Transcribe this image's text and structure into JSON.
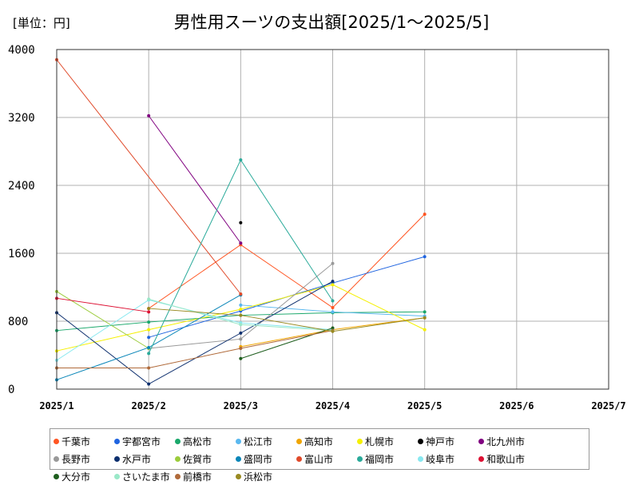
{
  "chart_data": {
    "type": "line",
    "title": "男性用スーツの支出額[2025/1～2025/5]",
    "unit_label": "[単位：円]",
    "xlabel": "",
    "ylabel": "",
    "x_ticks": [
      "2025/1",
      "2025/2",
      "2025/3",
      "2025/4",
      "2025/5",
      "2025/6",
      "2025/7"
    ],
    "y_ticks": [
      0,
      800,
      1600,
      2400,
      3200,
      4000
    ],
    "ylim": [
      0,
      4000
    ],
    "xlim": [
      "2025/1",
      "2025/7"
    ],
    "grid": true,
    "legend_position": "bottom",
    "series": [
      {
        "name": "千葉市",
        "color": "#ff5522",
        "points": [
          [
            "2025/2",
            950
          ],
          [
            "2025/3",
            1700
          ],
          [
            "2025/4",
            960
          ],
          [
            "2025/5",
            2060
          ]
        ]
      },
      {
        "name": "宇都宮市",
        "color": "#1f64e0",
        "points": [
          [
            "2025/2",
            610
          ],
          [
            "2025/3",
            920
          ],
          [
            "2025/4",
            1250
          ],
          [
            "2025/5",
            1560
          ]
        ]
      },
      {
        "name": "高松市",
        "color": "#1aa86b",
        "points": [
          [
            "2025/1",
            690
          ],
          [
            "2025/2",
            790
          ],
          [
            "2025/3",
            870
          ],
          [
            "2025/4",
            900
          ],
          [
            "2025/5",
            910
          ]
        ]
      },
      {
        "name": "松江市",
        "color": "#5ab8ef",
        "points": [
          [
            "2025/3",
            990
          ],
          [
            "2025/4",
            910
          ],
          [
            "2025/5",
            860
          ]
        ]
      },
      {
        "name": "高知市",
        "color": "#f0a500",
        "points": [
          [
            "2025/3",
            500
          ],
          [
            "2025/4",
            700
          ],
          [
            "2025/5",
            840
          ]
        ]
      },
      {
        "name": "札幌市",
        "color": "#f5f000",
        "points": [
          [
            "2025/1",
            450
          ],
          [
            "2025/2",
            700
          ],
          [
            "2025/3",
            940
          ],
          [
            "2025/4",
            1230
          ],
          [
            "2025/5",
            700
          ]
        ]
      },
      {
        "name": "神戸市",
        "color": "#000000",
        "points": [
          [
            "2025/3",
            1960
          ]
        ]
      },
      {
        "name": "北九州市",
        "color": "#800080",
        "points": [
          [
            "2025/2",
            3220
          ],
          [
            "2025/3",
            1720
          ]
        ]
      },
      {
        "name": "長野市",
        "color": "#999999",
        "points": [
          [
            "2025/2",
            480
          ],
          [
            "2025/3",
            590
          ],
          [
            "2025/4",
            1480
          ]
        ]
      },
      {
        "name": "水戸市",
        "color": "#0d2f6e",
        "points": [
          [
            "2025/1",
            900
          ],
          [
            "2025/2",
            60
          ],
          [
            "2025/3",
            660
          ],
          [
            "2025/4",
            1270
          ]
        ]
      },
      {
        "name": "佐賀市",
        "color": "#9ccc3c",
        "points": [
          [
            "2025/1",
            1150
          ],
          [
            "2025/2",
            480
          ]
        ]
      },
      {
        "name": "盛岡市",
        "color": "#0a86b8",
        "points": [
          [
            "2025/1",
            110
          ],
          [
            "2025/2",
            490
          ],
          [
            "2025/3",
            1110
          ]
        ]
      },
      {
        "name": "富山市",
        "color": "#e04a2a",
        "points": [
          [
            "2025/1",
            3880
          ],
          [
            "2025/3",
            1120
          ]
        ]
      },
      {
        "name": "福岡市",
        "color": "#2aaa9a",
        "points": [
          [
            "2025/2",
            420
          ],
          [
            "2025/3",
            2700
          ],
          [
            "2025/4",
            1040
          ]
        ]
      },
      {
        "name": "岐阜市",
        "color": "#88e8f0",
        "points": [
          [
            "2025/1",
            340
          ],
          [
            "2025/2",
            1050
          ],
          [
            "2025/3",
            780
          ],
          [
            "2025/4",
            700
          ]
        ]
      },
      {
        "name": "和歌山市",
        "color": "#dd1133",
        "points": [
          [
            "2025/1",
            1070
          ],
          [
            "2025/2",
            910
          ]
        ]
      },
      {
        "name": "大分市",
        "color": "#1e5e1e",
        "points": [
          [
            "2025/3",
            360
          ],
          [
            "2025/4",
            720
          ]
        ]
      },
      {
        "name": "さいたま市",
        "color": "#9ae8c8",
        "points": [
          [
            "2025/2",
            1060
          ],
          [
            "2025/3",
            760
          ],
          [
            "2025/4",
            690
          ]
        ]
      },
      {
        "name": "前橋市",
        "color": "#b06a3a",
        "points": [
          [
            "2025/1",
            250
          ],
          [
            "2025/2",
            250
          ],
          [
            "2025/3",
            480
          ],
          [
            "2025/4",
            690
          ]
        ]
      },
      {
        "name": "浜松市",
        "color": "#998a22",
        "points": [
          [
            "2025/2",
            950
          ],
          [
            "2025/3",
            870
          ],
          [
            "2025/4",
            680
          ],
          [
            "2025/5",
            840
          ]
        ]
      }
    ]
  }
}
